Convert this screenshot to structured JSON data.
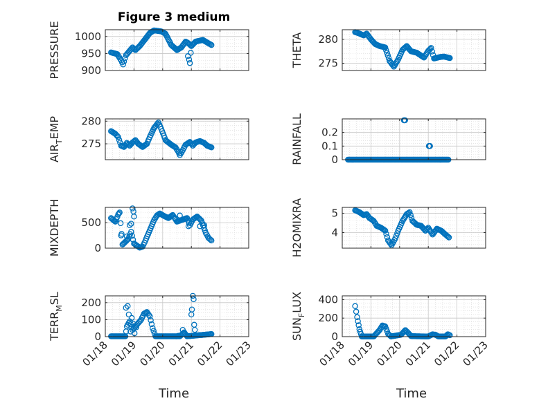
{
  "figure": {
    "title": "Figure 3 medium",
    "xlabel": "Time",
    "marker_color": "#0072BD",
    "x_ticks": [
      "01/18",
      "01/19",
      "01/20",
      "01/21",
      "01/22",
      "01/23"
    ]
  },
  "chart_data": [
    {
      "type": "scatter",
      "id": "pressure",
      "ylabel_parts": [
        "PRESSURE"
      ],
      "ylim": [
        900,
        1020
      ],
      "yticks": [
        900,
        950,
        1000
      ],
      "xlim": [
        0,
        5
      ],
      "grid": true,
      "anchors": [
        [
          0.2,
          953
        ],
        [
          0.42,
          948
        ],
        [
          0.55,
          930
        ],
        [
          0.62,
          918
        ],
        [
          0.72,
          945
        ],
        [
          0.85,
          958
        ],
        [
          0.95,
          968
        ],
        [
          1.05,
          960
        ],
        [
          1.2,
          972
        ],
        [
          1.35,
          988
        ],
        [
          1.55,
          1010
        ],
        [
          1.7,
          1018
        ],
        [
          1.95,
          1015
        ],
        [
          2.1,
          1008
        ],
        [
          2.3,
          975
        ],
        [
          2.5,
          960
        ],
        [
          2.65,
          968
        ],
        [
          2.8,
          985
        ],
        [
          2.9,
          980
        ],
        [
          3.0,
          972
        ],
        [
          3.15,
          985
        ],
        [
          3.4,
          990
        ],
        [
          3.6,
          980
        ],
        [
          3.7,
          975
        ]
      ],
      "extra_points": [
        [
          2.88,
          942
        ],
        [
          2.92,
          932
        ],
        [
          2.95,
          922
        ],
        [
          2.98,
          952
        ]
      ]
    },
    {
      "type": "scatter",
      "id": "theta",
      "ylabel_parts": [
        "THETA"
      ],
      "ylim": [
        273.5,
        282
      ],
      "yticks": [
        275,
        280
      ],
      "xlim": [
        0,
        5
      ],
      "grid": true,
      "anchors": [
        [
          0.45,
          281.5
        ],
        [
          0.6,
          281.2
        ],
        [
          0.75,
          280.8
        ],
        [
          0.85,
          281.2
        ],
        [
          1.0,
          280
        ],
        [
          1.15,
          279
        ],
        [
          1.3,
          278.6
        ],
        [
          1.5,
          278.3
        ],
        [
          1.65,
          275.5
        ],
        [
          1.8,
          274.3
        ],
        [
          1.95,
          275.8
        ],
        [
          2.1,
          277.8
        ],
        [
          2.25,
          278.6
        ],
        [
          2.4,
          277.5
        ],
        [
          2.6,
          277.2
        ],
        [
          2.85,
          276.2
        ],
        [
          3.0,
          277.6
        ],
        [
          3.1,
          278.2
        ],
        [
          3.2,
          276
        ],
        [
          3.4,
          276.3
        ],
        [
          3.55,
          276.4
        ],
        [
          3.75,
          276.1
        ]
      ],
      "extra_points": []
    },
    {
      "type": "scatter",
      "id": "air_temp",
      "ylabel_parts": [
        "AIR",
        "T",
        "EMP"
      ],
      "ylim": [
        271.5,
        280.5
      ],
      "yticks": [
        275,
        280
      ],
      "xlim": [
        0,
        5
      ],
      "grid": true,
      "anchors": [
        [
          0.2,
          277.8
        ],
        [
          0.35,
          277.2
        ],
        [
          0.45,
          276.5
        ],
        [
          0.55,
          274.6
        ],
        [
          0.65,
          274.3
        ],
        [
          0.75,
          275.2
        ],
        [
          0.85,
          274.6
        ],
        [
          0.95,
          275.3
        ],
        [
          1.05,
          275.8
        ],
        [
          1.15,
          275
        ],
        [
          1.3,
          274.3
        ],
        [
          1.45,
          275
        ],
        [
          1.55,
          276.5
        ],
        [
          1.7,
          278.5
        ],
        [
          1.85,
          279.7
        ],
        [
          1.95,
          278.3
        ],
        [
          2.1,
          275.8
        ],
        [
          2.3,
          274.8
        ],
        [
          2.45,
          274.2
        ],
        [
          2.55,
          273.2
        ],
        [
          2.6,
          272.5
        ],
        [
          2.7,
          273.6
        ],
        [
          2.8,
          274.8
        ],
        [
          2.95,
          275.4
        ],
        [
          3.05,
          274.6
        ],
        [
          3.15,
          275.3
        ],
        [
          3.3,
          275.6
        ],
        [
          3.45,
          275.2
        ],
        [
          3.55,
          274.6
        ],
        [
          3.7,
          274.2
        ]
      ],
      "extra_points": []
    },
    {
      "type": "scatter",
      "id": "rainfall",
      "ylabel_parts": [
        "RAINFALL"
      ],
      "ylim": [
        0,
        0.3
      ],
      "yticks": [
        0,
        0.1,
        0.2
      ],
      "yticklabels": [
        "0",
        "0.1",
        "0.2"
      ],
      "xlim": [
        0,
        5
      ],
      "grid": true,
      "anchors": [
        [
          0.2,
          0
        ],
        [
          3.7,
          0
        ]
      ],
      "extra_points": [
        [
          2.15,
          0.29
        ],
        [
          2.17,
          0.29
        ],
        [
          2.19,
          0.29
        ],
        [
          3.02,
          0.1
        ],
        [
          3.04,
          0.1
        ],
        [
          3.06,
          0.1
        ]
      ]
    },
    {
      "type": "scatter",
      "id": "mixdepth",
      "ylabel_parts": [
        "MIXDEPTH"
      ],
      "ylim": [
        0,
        800
      ],
      "yticks": [
        0,
        500
      ],
      "xlim": [
        0,
        5
      ],
      "grid": true,
      "anchors": [
        [
          0.2,
          590
        ],
        [
          0.35,
          520
        ],
        [
          0.45,
          660
        ],
        [
          0.5,
          700
        ],
        [
          0.6,
          70
        ],
        [
          0.8,
          180
        ],
        [
          0.9,
          320
        ],
        [
          1.0,
          90
        ],
        [
          1.1,
          50
        ],
        [
          1.2,
          10
        ],
        [
          1.3,
          30
        ],
        [
          1.4,
          150
        ],
        [
          1.55,
          350
        ],
        [
          1.7,
          550
        ],
        [
          1.8,
          640
        ],
        [
          1.9,
          680
        ],
        [
          2.05,
          630
        ],
        [
          2.2,
          590
        ],
        [
          2.35,
          650
        ],
        [
          2.5,
          520
        ],
        [
          2.7,
          560
        ],
        [
          2.85,
          590
        ],
        [
          2.95,
          450
        ],
        [
          3.05,
          560
        ],
        [
          3.2,
          620
        ],
        [
          3.35,
          540
        ],
        [
          3.5,
          300
        ],
        [
          3.6,
          200
        ],
        [
          3.7,
          150
        ]
      ],
      "extra_points": [
        [
          0.55,
          250
        ],
        [
          0.75,
          230
        ],
        [
          0.85,
          450
        ],
        [
          0.9,
          480
        ],
        [
          0.95,
          780
        ],
        [
          0.98,
          720
        ],
        [
          1.0,
          620
        ],
        [
          2.6,
          640
        ],
        [
          2.9,
          430
        ],
        [
          3.3,
          430
        ],
        [
          3.45,
          450
        ]
      ]
    },
    {
      "type": "scatter",
      "id": "h2omixra",
      "ylabel_parts": [
        "H2OMIXRA"
      ],
      "ylim": [
        3.2,
        5.3
      ],
      "yticks": [
        4,
        5
      ],
      "xlim": [
        0,
        5
      ],
      "grid": true,
      "anchors": [
        [
          0.45,
          5.15
        ],
        [
          0.6,
          5.05
        ],
        [
          0.75,
          4.9
        ],
        [
          0.85,
          4.95
        ],
        [
          0.95,
          4.75
        ],
        [
          1.1,
          4.6
        ],
        [
          1.2,
          4.35
        ],
        [
          1.35,
          4.25
        ],
        [
          1.5,
          4.1
        ],
        [
          1.6,
          3.6
        ],
        [
          1.72,
          3.35
        ],
        [
          1.85,
          3.7
        ],
        [
          1.95,
          4.1
        ],
        [
          2.1,
          4.6
        ],
        [
          2.25,
          4.95
        ],
        [
          2.35,
          5.05
        ],
        [
          2.45,
          4.6
        ],
        [
          2.6,
          4.4
        ],
        [
          2.75,
          4.35
        ],
        [
          2.9,
          4.1
        ],
        [
          3.0,
          4.25
        ],
        [
          3.15,
          3.9
        ],
        [
          3.3,
          4.2
        ],
        [
          3.45,
          4.1
        ],
        [
          3.6,
          3.9
        ],
        [
          3.72,
          3.75
        ]
      ],
      "extra_points": []
    },
    {
      "type": "scatter",
      "id": "terr_msl",
      "ylabel_parts": [
        "TERR",
        "M",
        "SL"
      ],
      "ylim": [
        0,
        240
      ],
      "yticks": [
        0,
        100,
        200
      ],
      "xlim": [
        0,
        5
      ],
      "grid": true,
      "anchors": [
        [
          0.2,
          2
        ],
        [
          0.7,
          2
        ],
        [
          0.75,
          60
        ],
        [
          0.85,
          90
        ],
        [
          0.95,
          40
        ],
        [
          1.05,
          60
        ],
        [
          1.15,
          80
        ],
        [
          1.25,
          100
        ],
        [
          1.35,
          135
        ],
        [
          1.45,
          145
        ],
        [
          1.55,
          120
        ],
        [
          1.65,
          50
        ],
        [
          1.75,
          2
        ],
        [
          2.6,
          2
        ],
        [
          2.75,
          25
        ],
        [
          2.85,
          2
        ],
        [
          3.7,
          15
        ]
      ],
      "extra_points": [
        [
          0.72,
          170
        ],
        [
          0.78,
          180
        ],
        [
          0.82,
          130
        ],
        [
          0.88,
          30
        ],
        [
          0.92,
          110
        ],
        [
          0.98,
          75
        ],
        [
          1.02,
          20
        ],
        [
          1.08,
          55
        ],
        [
          2.55,
          5
        ],
        [
          2.7,
          40
        ],
        [
          3.0,
          130
        ],
        [
          3.02,
          160
        ],
        [
          3.05,
          240
        ],
        [
          3.08,
          220
        ],
        [
          3.1,
          70
        ],
        [
          3.12,
          40
        ]
      ]
    },
    {
      "type": "scatter",
      "id": "sun_flux",
      "ylabel_parts": [
        "SUN",
        "F",
        "LUX"
      ],
      "ylim": [
        0,
        440
      ],
      "yticks": [
        0,
        200,
        400
      ],
      "xlim": [
        0,
        5
      ],
      "grid": true,
      "anchors": [
        [
          0.45,
          330
        ],
        [
          0.52,
          210
        ],
        [
          0.6,
          80
        ],
        [
          0.68,
          2
        ],
        [
          1.1,
          2
        ],
        [
          1.3,
          70
        ],
        [
          1.4,
          120
        ],
        [
          1.5,
          110
        ],
        [
          1.6,
          30
        ],
        [
          1.7,
          2
        ],
        [
          2.05,
          20
        ],
        [
          2.2,
          70
        ],
        [
          2.3,
          40
        ],
        [
          2.4,
          5
        ],
        [
          3.0,
          2
        ],
        [
          3.15,
          25
        ],
        [
          3.25,
          20
        ],
        [
          3.35,
          2
        ],
        [
          3.6,
          2
        ],
        [
          3.68,
          25
        ],
        [
          3.75,
          15
        ]
      ],
      "extra_points": []
    }
  ]
}
